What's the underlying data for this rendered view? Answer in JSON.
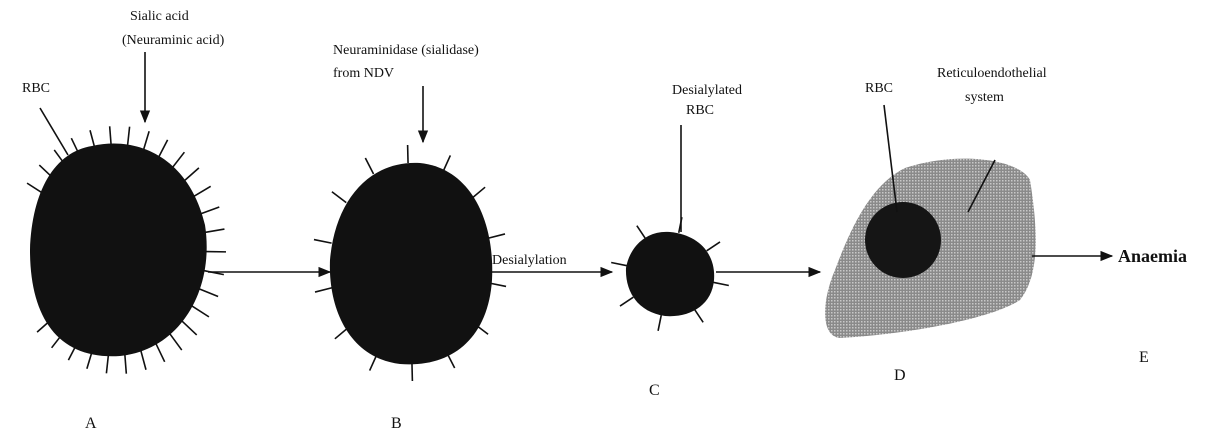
{
  "nodes": [
    {
      "letter": "A",
      "annotations": [
        [
          "RBC"
        ],
        [
          "Sialic acid",
          "(Neuraminic acid)"
        ]
      ]
    },
    {
      "letter": "B",
      "annotations": [
        [
          "Neuraminidase (sialidase)",
          "from NDV"
        ]
      ]
    },
    {
      "letter": "C",
      "annotations": [
        [
          "Desialylated",
          "RBC"
        ]
      ]
    },
    {
      "letter": "D",
      "annotations": [
        [
          "RBC"
        ],
        [
          "Reticuloendothelial",
          "system"
        ]
      ]
    },
    {
      "letter": "E",
      "annotations": [
        [
          "Anaemia"
        ]
      ]
    }
  ],
  "edges": [
    {
      "label": "Desialylation"
    }
  ]
}
